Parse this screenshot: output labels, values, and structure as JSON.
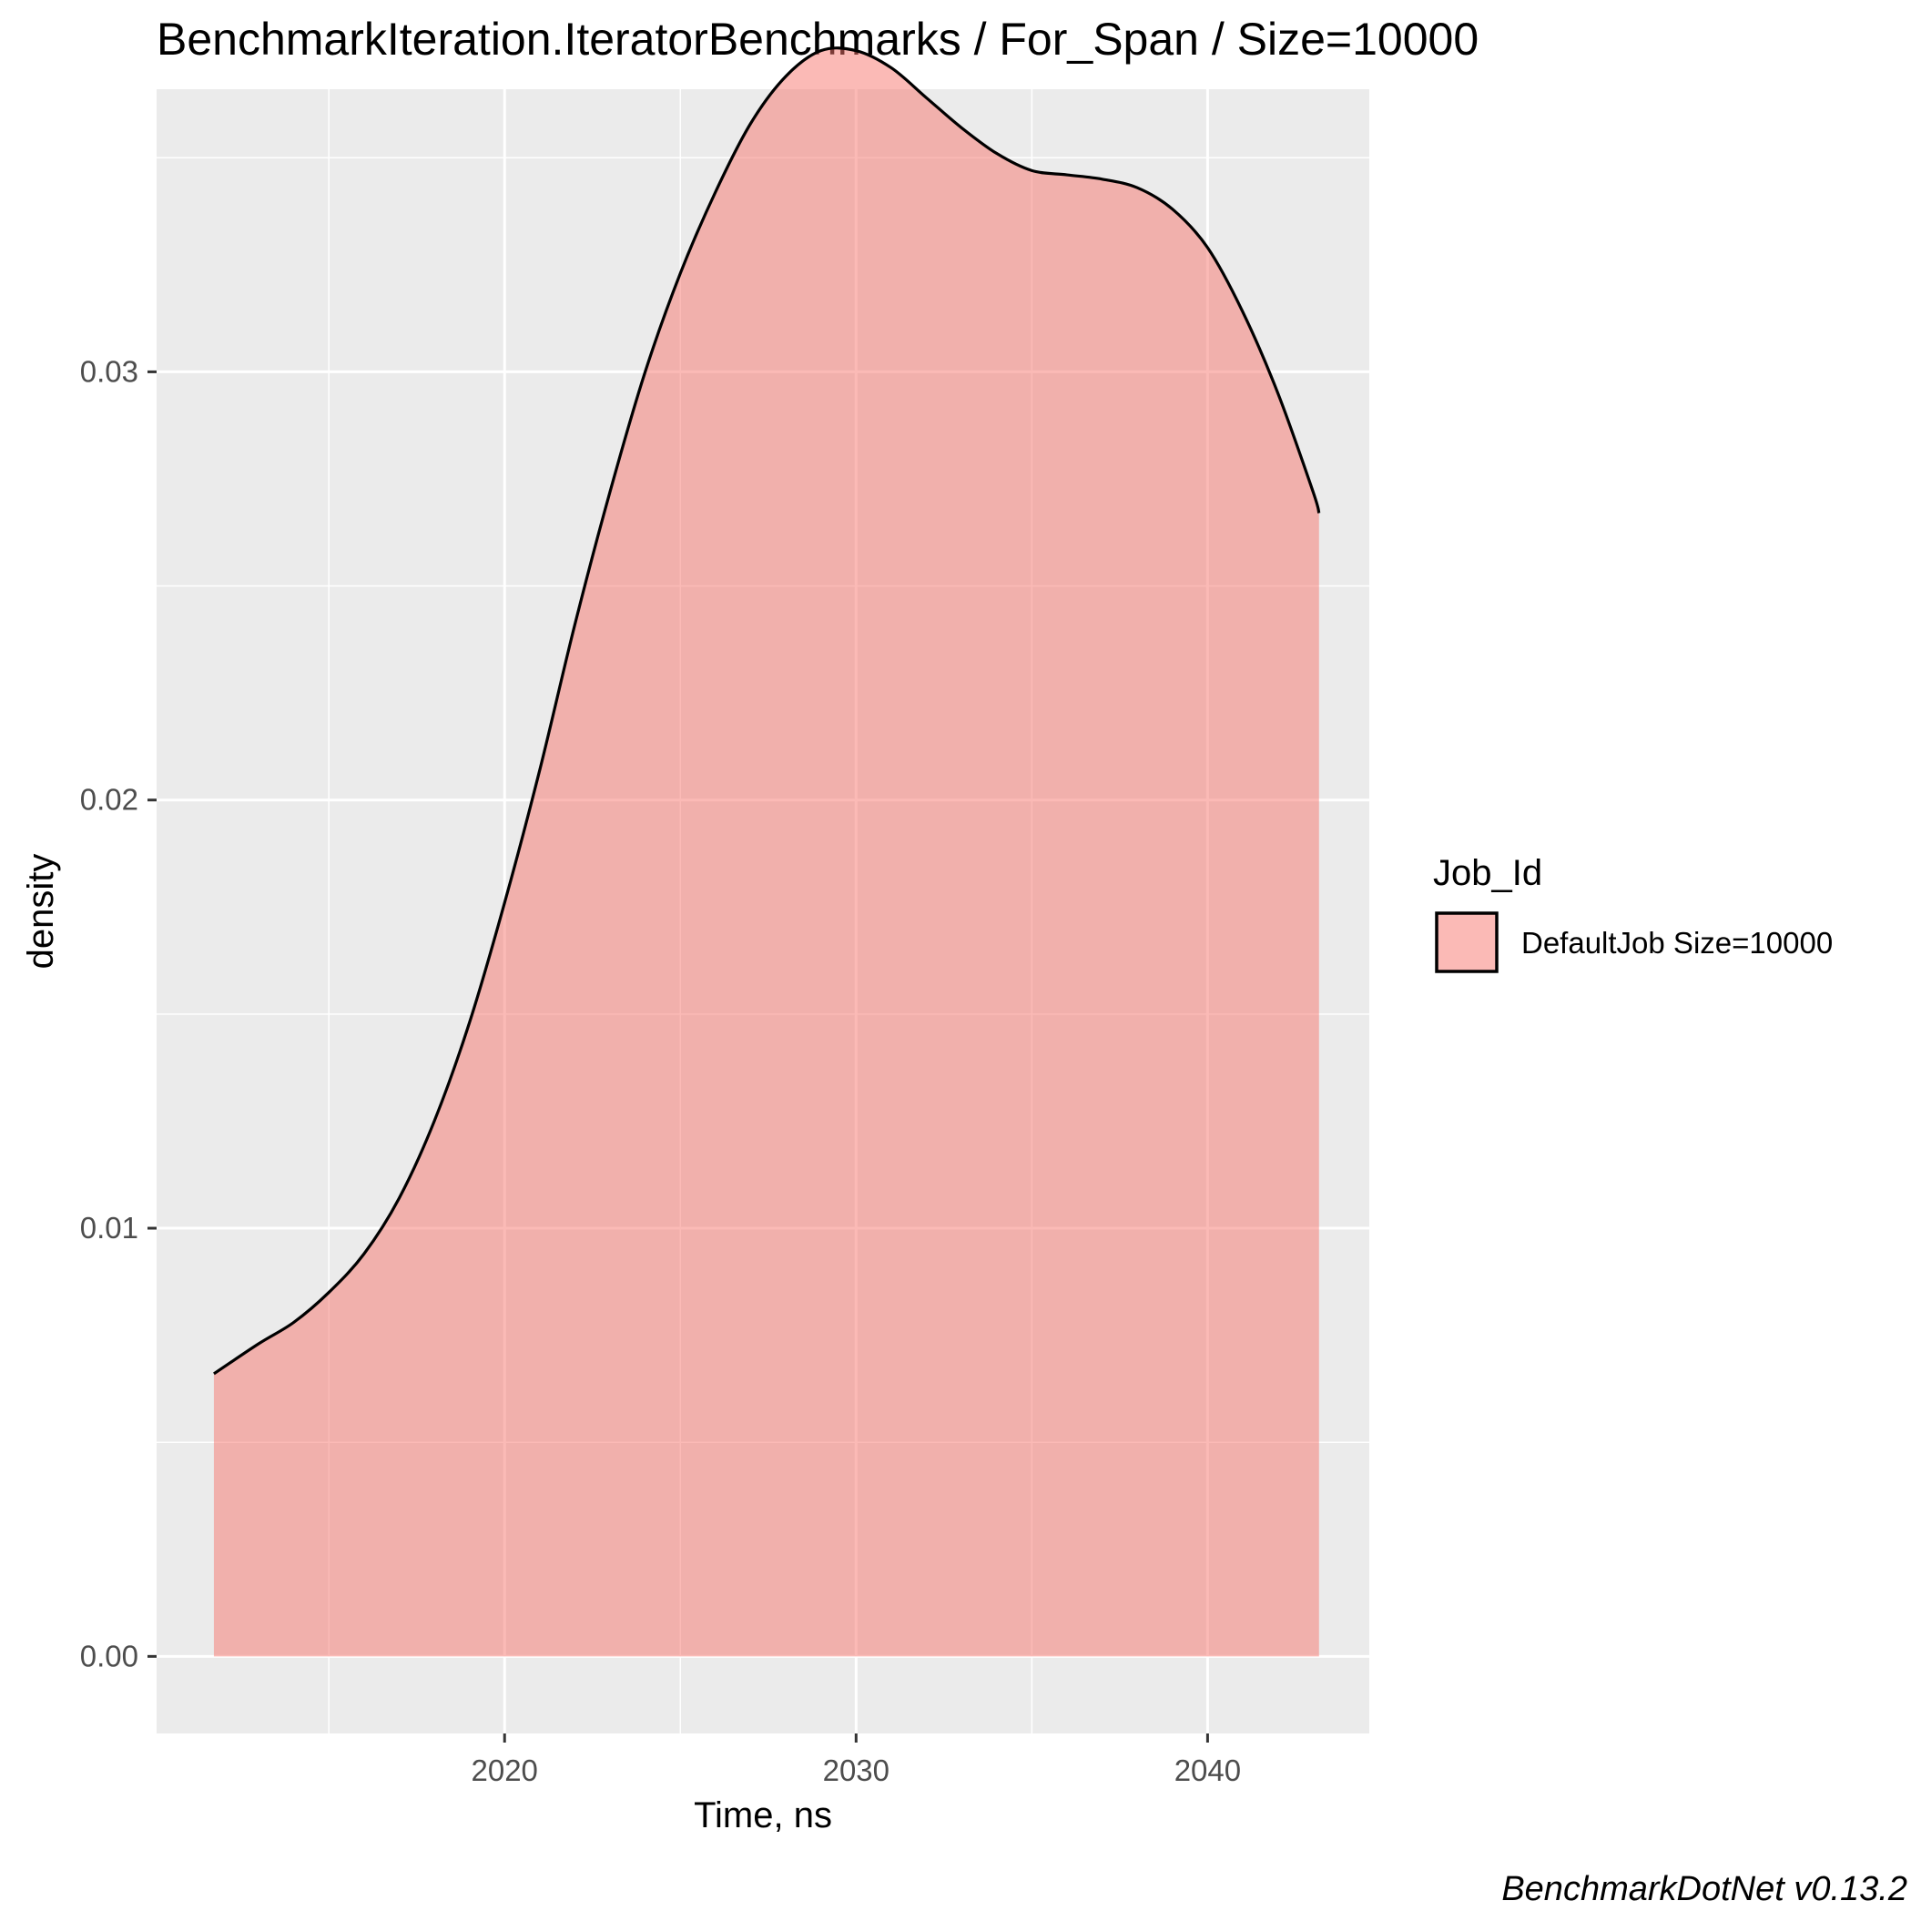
{
  "chart_data": {
    "type": "area",
    "title": "BenchmarkIteration.IteratorBenchmarks / For_Span / Size=10000",
    "xlabel": "Time, ns",
    "ylabel": "density",
    "xlim": [
      2010.1,
      2044.6
    ],
    "ylim": [
      -0.0018,
      0.0366
    ],
    "x_ticks": [
      2020,
      2030,
      2040
    ],
    "x_tick_labels": [
      "2020",
      "2030",
      "2040"
    ],
    "y_ticks": [
      0.0,
      0.01,
      0.02,
      0.03
    ],
    "y_tick_labels": [
      "0.00",
      "0.01",
      "0.02",
      "0.03"
    ],
    "grid": true,
    "legend": {
      "title": "Job_Id",
      "position": "right"
    },
    "series": [
      {
        "name": "DefaultJob Size=10000",
        "color": "#F8766D",
        "fill_alpha": 0.5,
        "x": [
          2011.73,
          2013.0,
          2014.0,
          2015.0,
          2016.0,
          2017.0,
          2018.0,
          2019.0,
          2020.0,
          2021.0,
          2022.0,
          2023.0,
          2024.0,
          2025.0,
          2026.0,
          2027.0,
          2028.0,
          2029.0,
          2030.0,
          2031.0,
          2032.0,
          2033.0,
          2034.0,
          2035.0,
          2036.0,
          2037.0,
          2038.0,
          2039.0,
          2040.0,
          2041.0,
          2042.0,
          2043.0,
          2043.17
        ],
        "y": [
          0.0066,
          0.0073,
          0.0078,
          0.0085,
          0.0094,
          0.0107,
          0.0125,
          0.0148,
          0.0176,
          0.0207,
          0.0241,
          0.0272,
          0.03,
          0.0323,
          0.0342,
          0.0358,
          0.0369,
          0.0375,
          0.0375,
          0.0371,
          0.0364,
          0.0357,
          0.0351,
          0.0347,
          0.0346,
          0.0345,
          0.0343,
          0.0338,
          0.0329,
          0.0314,
          0.0295,
          0.0272,
          0.0267
        ]
      }
    ]
  },
  "legend": {
    "title": "Job_Id",
    "item_label": "DefaultJob Size=10000"
  },
  "caption": "BenchmarkDotNet v0.13.2"
}
